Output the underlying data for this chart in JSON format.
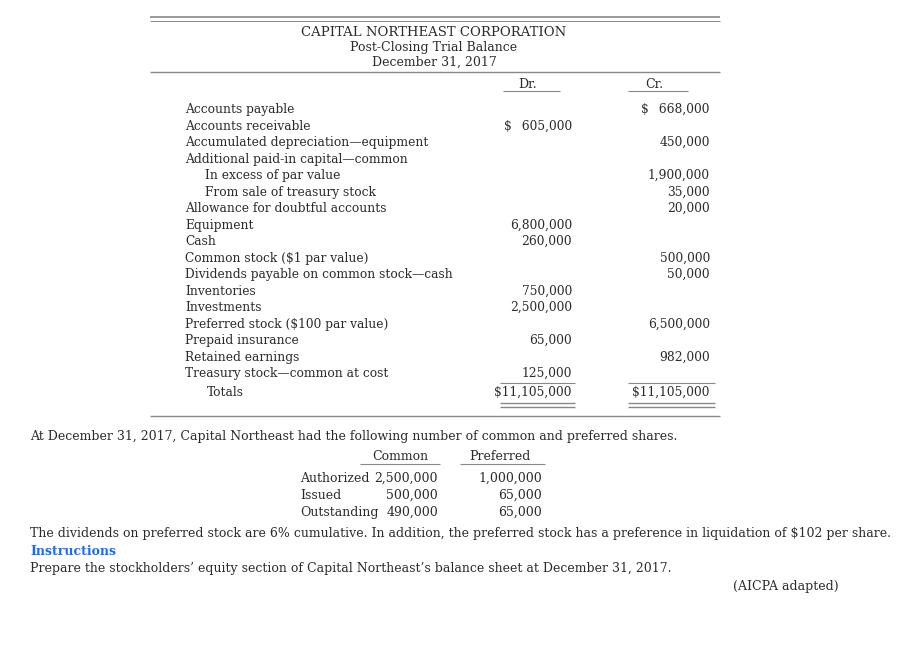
{
  "title1": "CAPITAL NORTHEAST CORPORATION",
  "title2": "Post-Closing Trial Balance",
  "title3": "December 31, 2017",
  "col_dr": "Dr.",
  "col_cr": "Cr.",
  "rows": [
    {
      "label": "Accounts payable",
      "indent": 0,
      "dr": "",
      "cr": "$  668,000"
    },
    {
      "label": "Accounts receivable",
      "indent": 0,
      "dr": "$  605,000",
      "cr": ""
    },
    {
      "label": "Accumulated depreciation—equipment",
      "indent": 0,
      "dr": "",
      "cr": "450,000"
    },
    {
      "label": "Additional paid-in capital—common",
      "indent": 0,
      "dr": "",
      "cr": ""
    },
    {
      "label": "In excess of par value",
      "indent": 1,
      "dr": "",
      "cr": "1,900,000"
    },
    {
      "label": "From sale of treasury stock",
      "indent": 1,
      "dr": "",
      "cr": "35,000"
    },
    {
      "label": "Allowance for doubtful accounts",
      "indent": 0,
      "dr": "",
      "cr": "20,000"
    },
    {
      "label": "Equipment",
      "indent": 0,
      "dr": "6,800,000",
      "cr": ""
    },
    {
      "label": "Cash",
      "indent": 0,
      "dr": "260,000",
      "cr": ""
    },
    {
      "label": "Common stock ($1 par value)",
      "indent": 0,
      "dr": "",
      "cr": "500,000"
    },
    {
      "label": "Dividends payable on common stock—cash",
      "indent": 0,
      "dr": "",
      "cr": "50,000"
    },
    {
      "label": "Inventories",
      "indent": 0,
      "dr": "750,000",
      "cr": ""
    },
    {
      "label": "Investments",
      "indent": 0,
      "dr": "2,500,000",
      "cr": ""
    },
    {
      "label": "Preferred stock ($100 par value)",
      "indent": 0,
      "dr": "",
      "cr": "6,500,000"
    },
    {
      "label": "Prepaid insurance",
      "indent": 0,
      "dr": "65,000",
      "cr": ""
    },
    {
      "label": "Retained earnings",
      "indent": 0,
      "dr": "",
      "cr": "982,000"
    },
    {
      "label": "Treasury stock—common at cost",
      "indent": 0,
      "dr": "125,000",
      "cr": ""
    }
  ],
  "totals_label": "Totals",
  "totals_dr": "$11,105,000",
  "totals_cr": "$11,105,000",
  "note_line": "At December 31, 2017, Capital Northeast had the following number of common and preferred shares.",
  "shares_header_common": "Common",
  "shares_header_preferred": "Preferred",
  "shares_rows": [
    {
      "label": "Authorized",
      "common": "2,500,000",
      "preferred": "1,000,000"
    },
    {
      "label": "Issued",
      "common": "500,000",
      "preferred": "65,000"
    },
    {
      "label": "Outstanding",
      "common": "490,000",
      "preferred": "65,000"
    }
  ],
  "dividend_note": "The dividends on preferred stock are 6% cumulative. In addition, the preferred stock has a preference in liquidation of $102 per share.",
  "instructions_label": "Instructions",
  "instructions_text": "Prepare the stockholders’ equity section of Capital Northeast’s balance sheet at December 31, 2017.",
  "aicpa_text": "(AICPA adapted)",
  "instructions_color": "#1a6aff",
  "bg_color": "#FFFFFF",
  "text_color": "#2b2b2b",
  "line_color": "#888888"
}
